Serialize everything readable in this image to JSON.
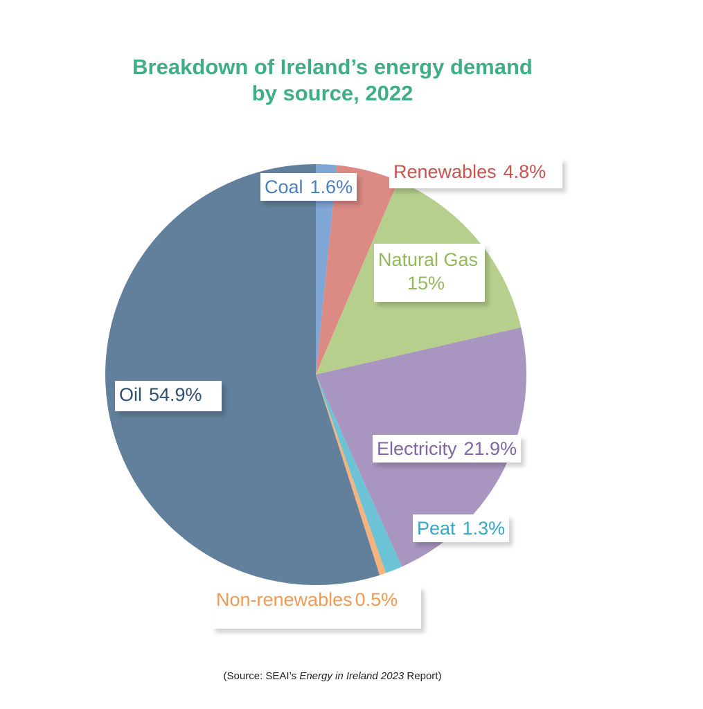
{
  "chart_data": {
    "type": "pie",
    "title_line1": "Breakdown of Ireland’s energy demand",
    "title_line2": "by source, 2022",
    "slices": [
      {
        "name": "Coal",
        "label": "1.6%",
        "value": 1.6,
        "color": "#7fa7d6"
      },
      {
        "name": "Renewables",
        "label": "4.8%",
        "value": 4.8,
        "color": "#db8a84"
      },
      {
        "name": "Natural Gas",
        "label": "15%",
        "value": 15,
        "color": "#b7cf8d"
      },
      {
        "name": "Electricity",
        "label": "21.9%",
        "value": 21.9,
        "color": "#a996c0"
      },
      {
        "name": "Peat",
        "label": "1.3%",
        "value": 1.3,
        "color": "#6cc3d6"
      },
      {
        "name": "Non-renewables",
        "label": "0.5%",
        "value": 0.5,
        "color": "#f5b37d"
      },
      {
        "name": "Oil",
        "label": "54.9%",
        "value": 54.9,
        "color": "#627f9c"
      }
    ],
    "label_colors": {
      "Coal": "#4a7fc0",
      "Renewables": "#c9534f",
      "Natural Gas": "#95b85a",
      "Electricity": "#8064a6",
      "Peat": "#34a9c4",
      "Non-renewables": "#f19a55",
      "Oil": "#2f4f70"
    }
  },
  "source": {
    "prefix": "(Source: SEAI’s ",
    "italic": "Energy in Ireland 2023",
    "suffix": " Report)"
  }
}
